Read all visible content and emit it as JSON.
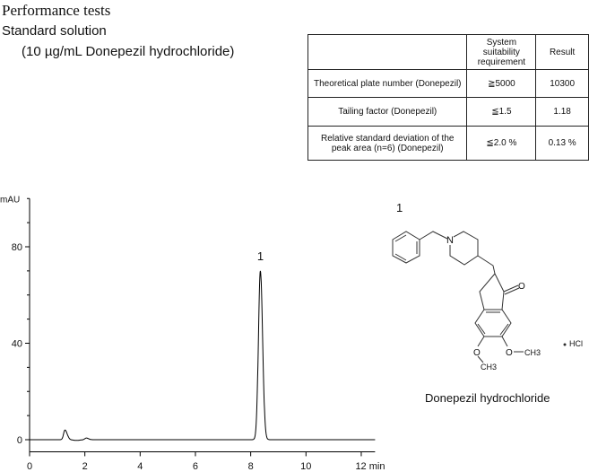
{
  "heading": "Performance tests",
  "subheading": "Standard solution",
  "sample": "(10 µg/mL Donepezil hydrochloride)",
  "table": {
    "headers": [
      "",
      "System suitability requirement",
      "Result"
    ],
    "rows": [
      [
        "Theoretical plate number (Donepezil)",
        "≧5000",
        "10300"
      ],
      [
        "Tailing factor (Donepezil)",
        "≦1.5",
        "1.18"
      ],
      [
        "Relative standard deviation of the peak area (n=6) (Donepezil)",
        "≦2.0 %",
        "0.13 %"
      ]
    ]
  },
  "chart_data": {
    "type": "line",
    "ylabel": "mAU",
    "xlabel": "min",
    "xlim": [
      0,
      12.5
    ],
    "ylim": [
      -5,
      100
    ],
    "xticks": [
      "0",
      "2",
      "4",
      "6",
      "8",
      "10",
      "12 min"
    ],
    "yticks": [
      "0",
      "40",
      "80"
    ],
    "peaks": [
      {
        "rt": 1.28,
        "height": 4
      },
      {
        "rt": 2.05,
        "height": 0.7
      },
      {
        "rt": 8.35,
        "height": 70,
        "label": "1"
      }
    ],
    "line_color": "#000000"
  },
  "structure": {
    "label": "1",
    "name": "Donepezil hydrochloride",
    "salt": "HCl",
    "atoms": [
      "N",
      "O",
      "O",
      "O",
      "CH3",
      "CH3"
    ]
  }
}
